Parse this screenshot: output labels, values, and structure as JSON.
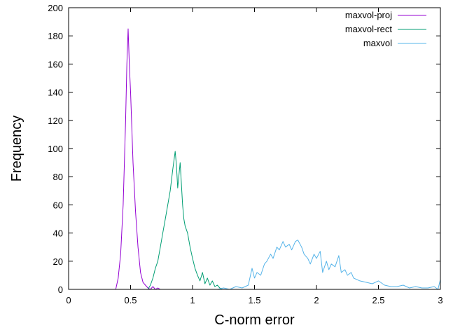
{
  "chart_data": {
    "type": "line",
    "xlabel": "C-norm error",
    "ylabel": "Frequency",
    "xlim": [
      0,
      3
    ],
    "ylim": [
      0,
      200
    ],
    "x_ticks": [
      0,
      0.5,
      1,
      1.5,
      2,
      2.5,
      3
    ],
    "x_tick_labels": [
      "0",
      "0.5",
      "1",
      "1.5",
      "2",
      "2.5",
      "3"
    ],
    "y_ticks": [
      0,
      20,
      40,
      60,
      80,
      100,
      120,
      140,
      160,
      180,
      200
    ],
    "y_tick_labels": [
      "0",
      "20",
      "40",
      "60",
      "80",
      "100",
      "120",
      "140",
      "160",
      "180",
      "200"
    ],
    "grid": false,
    "legend_position": "top-right",
    "series": [
      {
        "name": "maxvol-proj",
        "color": "#9400d3",
        "x": [
          0.38,
          0.4,
          0.42,
          0.44,
          0.46,
          0.47,
          0.48,
          0.49,
          0.5,
          0.52,
          0.54,
          0.56,
          0.58,
          0.6,
          0.62,
          0.64,
          0.66,
          0.68,
          0.7,
          0.72,
          0.74
        ],
        "y": [
          0,
          8,
          25,
          60,
          120,
          160,
          185,
          160,
          140,
          90,
          55,
          30,
          12,
          5,
          3,
          1,
          0,
          2,
          0,
          1,
          0
        ]
      },
      {
        "name": "maxvol-rect",
        "color": "#009e73",
        "x": [
          0.64,
          0.66,
          0.68,
          0.7,
          0.72,
          0.74,
          0.76,
          0.78,
          0.8,
          0.82,
          0.84,
          0.86,
          0.87,
          0.88,
          0.9,
          0.92,
          0.93,
          0.94,
          0.96,
          0.98,
          1.0,
          1.02,
          1.04,
          1.06,
          1.08,
          1.1,
          1.12,
          1.14,
          1.16,
          1.18,
          1.2,
          1.22,
          1.24
        ],
        "y": [
          0,
          3,
          8,
          15,
          20,
          30,
          40,
          50,
          60,
          70,
          85,
          98,
          88,
          72,
          90,
          60,
          50,
          45,
          40,
          30,
          22,
          15,
          10,
          6,
          12,
          4,
          8,
          3,
          6,
          2,
          3,
          1,
          0
        ]
      },
      {
        "name": "maxvol",
        "color": "#56b4e9",
        "x": [
          1.2,
          1.25,
          1.3,
          1.35,
          1.4,
          1.45,
          1.48,
          1.5,
          1.52,
          1.55,
          1.58,
          1.6,
          1.63,
          1.65,
          1.68,
          1.7,
          1.73,
          1.75,
          1.78,
          1.8,
          1.83,
          1.85,
          1.88,
          1.9,
          1.93,
          1.95,
          1.98,
          2.0,
          2.03,
          2.05,
          2.08,
          2.1,
          2.12,
          2.15,
          2.18,
          2.2,
          2.23,
          2.25,
          2.28,
          2.3,
          2.35,
          2.4,
          2.45,
          2.5,
          2.55,
          2.6,
          2.65,
          2.7,
          2.75,
          2.8,
          2.85,
          2.9,
          2.95,
          2.98,
          3.0
        ],
        "y": [
          0,
          1,
          0,
          2,
          1,
          3,
          15,
          8,
          12,
          10,
          18,
          20,
          25,
          22,
          30,
          28,
          34,
          30,
          32,
          28,
          34,
          35,
          30,
          25,
          22,
          18,
          25,
          22,
          27,
          12,
          20,
          14,
          18,
          16,
          24,
          12,
          14,
          10,
          12,
          8,
          6,
          5,
          4,
          6,
          3,
          2,
          2,
          3,
          1,
          2,
          1,
          1,
          2,
          0,
          7
        ]
      }
    ]
  }
}
